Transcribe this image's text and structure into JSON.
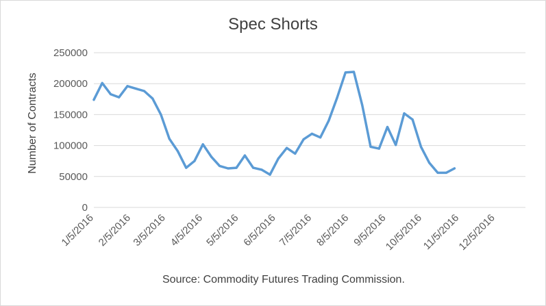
{
  "chart_data": {
    "type": "line",
    "title": "Spec Shorts",
    "ylabel": "Number of Contracts",
    "source": "Source: Commodity Futures Trading Commission.",
    "ylim": [
      0,
      250000
    ],
    "yticks": [
      "0",
      "50000",
      "100000",
      "150000",
      "200000",
      "250000"
    ],
    "xticks": [
      "1/5/2016",
      "2/5/2016",
      "3/5/2016",
      "4/5/2016",
      "5/5/2016",
      "6/5/2016",
      "7/5/2016",
      "8/5/2016",
      "9/5/2016",
      "10/5/2016",
      "11/5/2016",
      "12/5/2016"
    ],
    "grid": true,
    "line_color": "#5b9bd5",
    "series": [
      {
        "x": [
          "2016-01-05",
          "2016-01-12",
          "2016-01-19",
          "2016-01-26",
          "2016-02-02",
          "2016-02-09",
          "2016-02-16",
          "2016-02-23",
          "2016-03-01",
          "2016-03-08",
          "2016-03-15",
          "2016-03-22",
          "2016-03-29",
          "2016-04-05",
          "2016-04-12",
          "2016-04-19",
          "2016-04-26",
          "2016-05-03",
          "2016-05-10",
          "2016-05-17",
          "2016-05-24",
          "2016-05-31",
          "2016-06-07",
          "2016-06-14",
          "2016-06-21",
          "2016-06-28",
          "2016-07-05",
          "2016-07-12",
          "2016-07-19",
          "2016-07-26",
          "2016-08-02",
          "2016-08-09",
          "2016-08-16",
          "2016-08-23",
          "2016-08-30",
          "2016-09-06",
          "2016-09-13",
          "2016-09-20",
          "2016-09-27",
          "2016-10-04",
          "2016-10-11",
          "2016-10-18",
          "2016-10-25",
          "2016-11-01"
        ],
        "values": [
          174000,
          201000,
          183000,
          178000,
          196000,
          192000,
          188000,
          176000,
          150000,
          111000,
          91000,
          64000,
          75000,
          102000,
          82000,
          67000,
          63000,
          64000,
          84000,
          64000,
          61000,
          53000,
          79000,
          96000,
          87000,
          110000,
          119000,
          113000,
          140000,
          177000,
          218000,
          219000,
          165000,
          98000,
          95000,
          130000,
          101000,
          152000,
          142000,
          98000,
          72000,
          56000,
          56000,
          63000
        ]
      }
    ]
  }
}
